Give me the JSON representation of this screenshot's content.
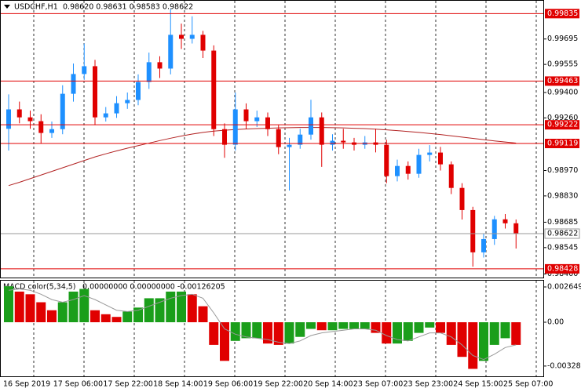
{
  "header": {
    "symbol": "USDCHF,H1",
    "quote": "0.98620 0.98631 0.98583 0.98622"
  },
  "chart_data": [
    {
      "type": "candlestick",
      "open": [
        0.992,
        0.99307,
        0.99263,
        0.99242,
        0.99177,
        0.99198,
        0.99393,
        0.99502,
        0.99545,
        0.99263,
        0.99285,
        0.99341,
        0.99359,
        0.99458,
        0.99567,
        0.99532,
        0.99718,
        0.99696,
        0.99718,
        0.99631,
        0.99198,
        0.99112,
        0.99307,
        0.99242,
        0.99263,
        0.99198,
        0.99099,
        0.99112,
        0.99168,
        0.99263,
        0.99112,
        0.99134,
        0.99125,
        0.99112,
        0.99125,
        0.99112,
        0.98939,
        0.98995,
        0.98952,
        0.99056,
        0.99069,
        0.99004,
        0.98874,
        0.98752,
        0.98519,
        0.98592,
        0.98701,
        0.98679
      ],
      "high": [
        0.9939,
        0.9935,
        0.993,
        0.9928,
        0.9924,
        0.9944,
        0.9956,
        0.9967,
        0.9958,
        0.9932,
        0.9938,
        0.994,
        0.995,
        0.9962,
        0.996,
        0.9986,
        0.9978,
        0.9982,
        0.9974,
        0.9966,
        0.9923,
        0.994,
        0.9934,
        0.993,
        0.9929,
        0.9922,
        0.9915,
        0.992,
        0.9936,
        0.9929,
        0.9917,
        0.992,
        0.9915,
        0.9916,
        0.992,
        0.9914,
        0.9903,
        0.9902,
        0.9909,
        0.9911,
        0.991,
        0.9902,
        0.989,
        0.9877,
        0.9862,
        0.9872,
        0.9873,
        0.987
      ],
      "low": [
        0.9908,
        0.9923,
        0.992,
        0.9912,
        0.9915,
        0.9917,
        0.9935,
        0.9947,
        0.9922,
        0.9924,
        0.9926,
        0.9931,
        0.9933,
        0.9942,
        0.9948,
        0.995,
        0.9964,
        0.9967,
        0.9959,
        0.9916,
        0.9904,
        0.9908,
        0.992,
        0.9921,
        0.9916,
        0.9906,
        0.9886,
        0.9909,
        0.9914,
        0.9899,
        0.9908,
        0.9909,
        0.9908,
        0.9909,
        0.9907,
        0.989,
        0.9891,
        0.9892,
        0.9893,
        0.9902,
        0.9897,
        0.9884,
        0.987,
        0.9844,
        0.9849,
        0.9856,
        0.9865,
        0.9854
      ],
      "close": [
        0.99307,
        0.99263,
        0.99242,
        0.99177,
        0.99198,
        0.99393,
        0.99502,
        0.99545,
        0.99263,
        0.99285,
        0.99341,
        0.99359,
        0.99458,
        0.99567,
        0.99532,
        0.99718,
        0.99696,
        0.99718,
        0.99631,
        0.99198,
        0.99112,
        0.99307,
        0.99242,
        0.99263,
        0.99198,
        0.99099,
        0.99112,
        0.99168,
        0.99263,
        0.99112,
        0.99134,
        0.99125,
        0.99112,
        0.99125,
        0.99112,
        0.98939,
        0.98995,
        0.98952,
        0.99056,
        0.99069,
        0.99004,
        0.98874,
        0.98752,
        0.98519,
        0.98592,
        0.98701,
        0.98679,
        0.98622
      ],
      "up_color": "#1e90ff",
      "down_color": "#e00000",
      "ma": {
        "color": "#b22222",
        "values": [
          0.98887,
          0.98905,
          0.98925,
          0.98945,
          0.98965,
          0.98985,
          0.99005,
          0.99025,
          0.99045,
          0.99062,
          0.99078,
          0.99093,
          0.99107,
          0.99121,
          0.99135,
          0.99148,
          0.9916,
          0.99171,
          0.9918,
          0.99187,
          0.99192,
          0.99196,
          0.99199,
          0.99201,
          0.99203,
          0.99205,
          0.99206,
          0.99207,
          0.99207,
          0.99207,
          0.99206,
          0.99205,
          0.99203,
          0.99201,
          0.99198,
          0.99194,
          0.9919,
          0.99185,
          0.9918,
          0.99174,
          0.99168,
          0.99161,
          0.99154,
          0.99147,
          0.9914,
          0.99133,
          0.99127,
          0.99121
        ]
      },
      "levels": {
        "color": "#e00000",
        "values": [
          0.99835,
          0.99463,
          0.99222,
          0.99119,
          0.98428
        ]
      },
      "current_price": 0.98622,
      "ylim": [
        0.9838,
        0.9991
      ],
      "yticks": [
        0.99695,
        0.99555,
        {
          "value": 0.994,
          "label": "0.99400"
        },
        {
          "value": 0.9926,
          "label": "0.99260"
        },
        {
          "value": 0.9897,
          "label": "0.98970"
        },
        {
          "value": 0.9883,
          "label": "0.98830"
        },
        0.98685,
        0.98545,
        {
          "value": 0.984,
          "label": "0.98400"
        }
      ],
      "x_labels": [
        "16 Sep 2019",
        "17 Sep 06:00",
        "17 Sep 22:00",
        "18 Sep 14:00",
        "19 Sep 06:00",
        "19 Sep 22:00",
        "20 Sep 14:00",
        "23 Sep 07:00",
        "23 Sep 23:00",
        "24 Sep 15:00",
        "25 Sep 07:00"
      ]
    },
    {
      "type": "macd",
      "title": "MACD color(5,34,5)",
      "readout": "0.00000000 0.00000000 -0.00126205",
      "values": [
        0.0027,
        0.0023,
        0.0021,
        0.0015,
        0.0009,
        0.0015,
        0.0023,
        0.0025,
        0.0009,
        0.0006,
        0.0004,
        0.0008,
        0.0011,
        0.0018,
        0.0018,
        0.0023,
        0.0023,
        0.0021,
        0.0012,
        -0.0017,
        -0.0029,
        -0.0014,
        -0.0012,
        -0.0012,
        -0.0016,
        -0.0017,
        -0.0016,
        -0.0011,
        -0.0005,
        -0.0006,
        -0.0006,
        -0.0005,
        -0.0005,
        -0.0005,
        -0.0008,
        -0.0016,
        -0.0016,
        -0.0014,
        -0.0008,
        -0.0004,
        -0.0008,
        -0.0017,
        -0.0026,
        -0.0035,
        -0.0029,
        -0.0017,
        -0.0012,
        -0.0017
      ],
      "signal": [
        0.0024,
        0.0025,
        0.0024,
        0.0021,
        0.0017,
        0.0015,
        0.0017,
        0.002,
        0.0017,
        0.0013,
        0.0009,
        0.0008,
        0.0009,
        0.0012,
        0.0015,
        0.0018,
        0.002,
        0.0021,
        0.0018,
        0.0007,
        -0.0005,
        -0.0009,
        -0.0011,
        -0.0012,
        -0.0013,
        -0.0015,
        -0.0016,
        -0.0014,
        -0.001,
        -0.0008,
        -0.0007,
        -0.0006,
        -0.0005,
        -0.0005,
        -0.0006,
        -0.001,
        -0.0013,
        -0.0014,
        -0.0011,
        -0.0008,
        -0.0008,
        -0.0011,
        -0.0017,
        -0.0025,
        -0.0028,
        -0.0024,
        -0.0019,
        -0.0017
      ],
      "up_color": "#1a9e1a",
      "down_color": "#e00000",
      "signal_color": "#999999",
      "ylim": [
        -0.00406,
        0.00312
      ],
      "yticks": [
        0.002649,
        {
          "value": 0,
          "label": "0.00"
        },
        -0.003289
      ]
    }
  ]
}
